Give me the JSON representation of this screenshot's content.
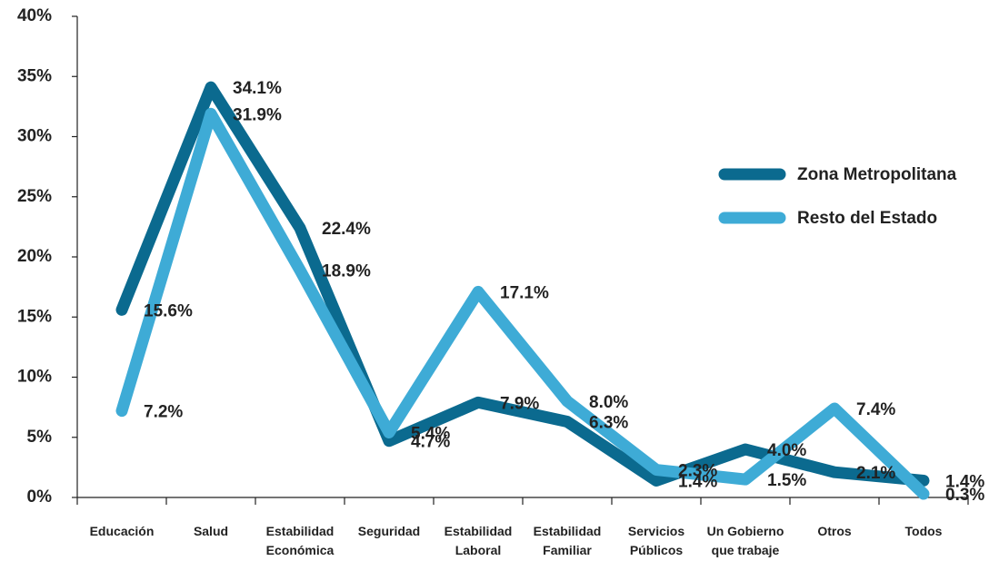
{
  "chart_data": {
    "type": "line",
    "categories": [
      "Educación",
      "Salud",
      "Estabilidad\nEconómica",
      "Seguridad",
      "Estabilidad\nLaboral",
      "Estabilidad\nFamiliar",
      "Servicios\nPúblicos",
      "Un Gobierno\nque trabaje",
      "Otros",
      "Todos"
    ],
    "series": [
      {
        "name": "Zona Metropolitana",
        "color": "#0b6a8f",
        "values": [
          15.6,
          34.1,
          22.4,
          4.7,
          7.9,
          6.3,
          1.4,
          4.0,
          2.1,
          1.4
        ],
        "value_labels": [
          "15.6%",
          "34.1%",
          "22.4%",
          "4.7%",
          "7.9%",
          "6.3%",
          "1.4%",
          "4.0%",
          "2.1%",
          "1.4%"
        ]
      },
      {
        "name": "Resto del Estado",
        "color": "#3eabd6",
        "values": [
          7.2,
          31.9,
          18.9,
          5.4,
          17.1,
          8.0,
          2.3,
          1.5,
          7.4,
          0.3
        ],
        "value_labels": [
          "7.2%",
          "31.9%",
          "18.9%",
          "5.4%",
          "17.1%",
          "8.0%",
          "2.3%",
          "1.5%",
          "7.4%",
          "0.3%"
        ]
      }
    ],
    "ylim": [
      0,
      40
    ],
    "yticks": [
      {
        "value": 0,
        "label": "0%"
      },
      {
        "value": 5,
        "label": "5%"
      },
      {
        "value": 10,
        "label": "10%"
      },
      {
        "value": 15,
        "label": "15%"
      },
      {
        "value": 20,
        "label": "20%"
      },
      {
        "value": 25,
        "label": "25%"
      },
      {
        "value": 30,
        "label": "30%"
      },
      {
        "value": 35,
        "label": "35%"
      },
      {
        "value": 40,
        "label": "40%"
      }
    ],
    "legend": "right",
    "grid": false
  }
}
